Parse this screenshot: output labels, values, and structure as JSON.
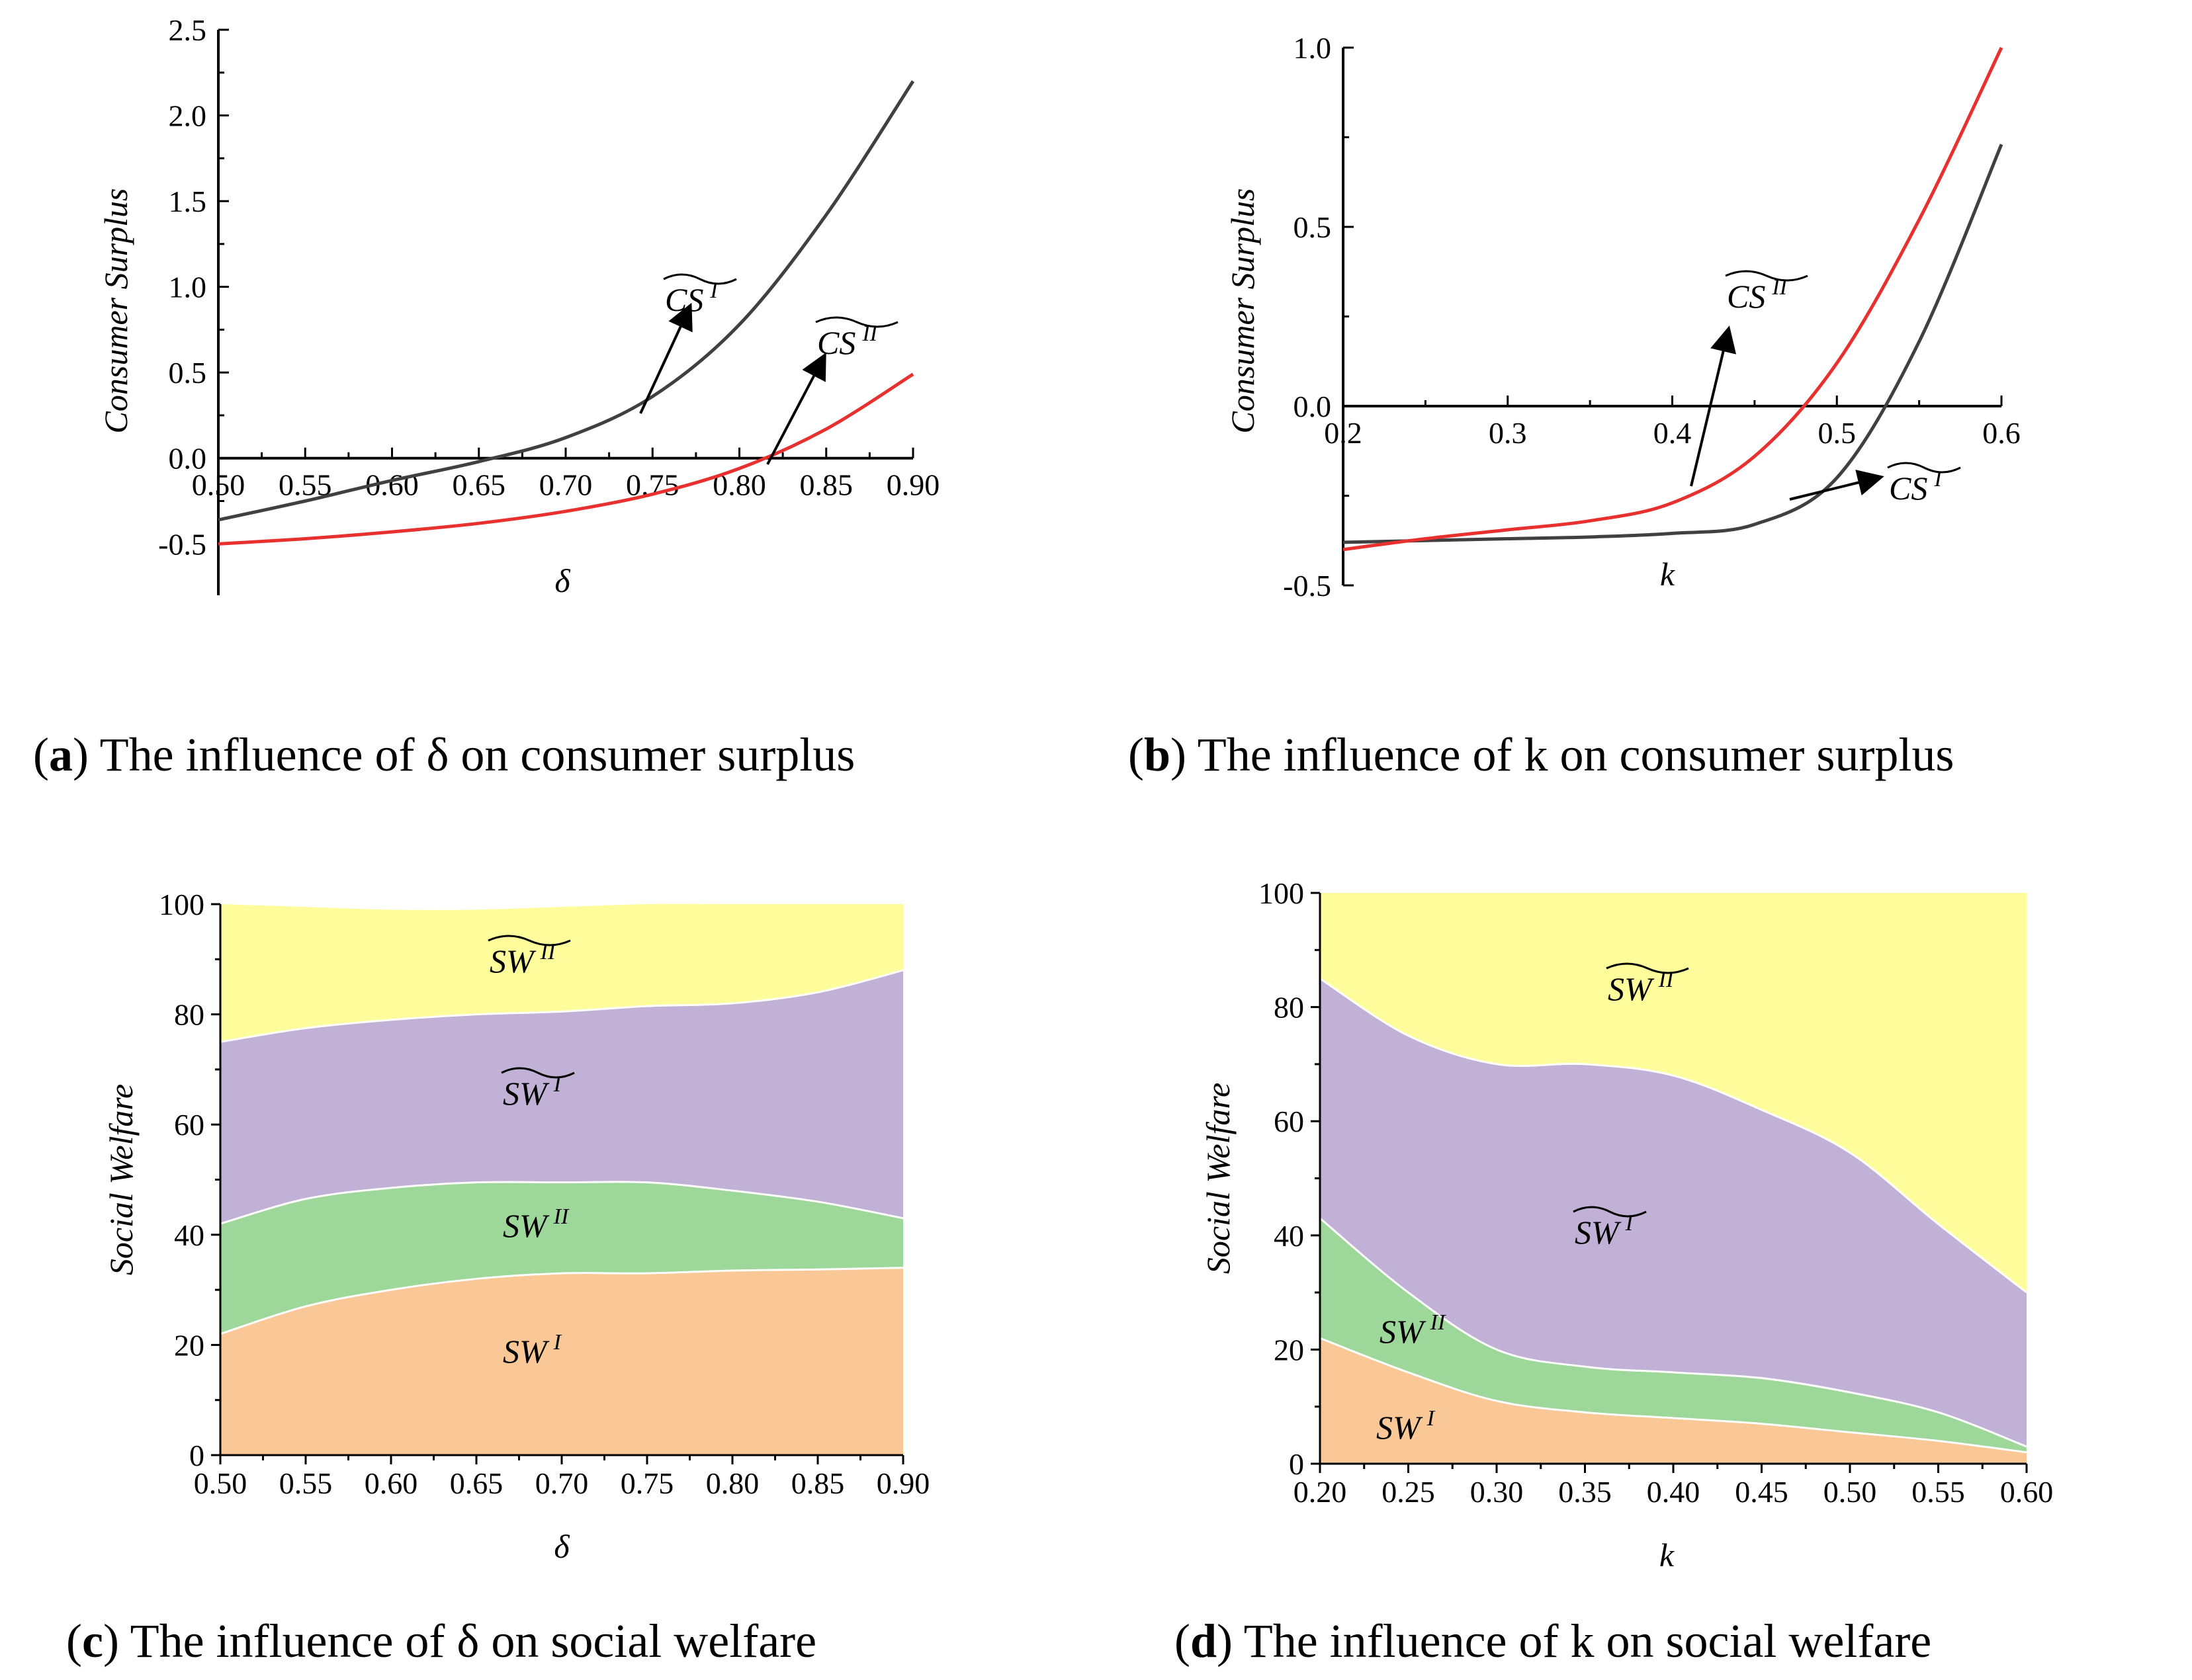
{
  "charts": [
    {
      "id": "a",
      "caption_letter": "a",
      "caption_text": " The influence of δ on consumer surplus",
      "xlabel": "δ",
      "ylabel": "Consumer Surplus",
      "colors": {
        "CS_I": "#404040",
        "CS_II": "#e8312f"
      }
    },
    {
      "id": "b",
      "caption_letter": "b",
      "caption_text": " The influence of k on consumer surplus",
      "xlabel": "k",
      "ylabel": "Consumer Surplus",
      "colors": {
        "CS_I": "#404040",
        "CS_II": "#e8312f"
      }
    },
    {
      "id": "c",
      "caption_letter": "c",
      "caption_text": " The influence of δ on social welfare",
      "xlabel": "δ",
      "ylabel": "Social Welfare",
      "colors": {
        "SW_I": "#f9c896",
        "SW_II": "#9ed79a",
        "SW_I_tilde": "#c1b1d6",
        "SW_II_tilde": "#fefc9b"
      }
    },
    {
      "id": "d",
      "caption_letter": "d",
      "caption_text": " The influence of k on social welfare",
      "xlabel": "k",
      "ylabel": "Social Welfare",
      "colors": {
        "SW_I": "#f9c896",
        "SW_II": "#9ed79a",
        "SW_I_tilde": "#c1b1d6",
        "SW_II_tilde": "#fefc9b"
      }
    }
  ],
  "chart_data": [
    {
      "id": "a",
      "type": "line",
      "title": "The influence of δ on consumer surplus",
      "xlabel": "δ",
      "ylabel": "Consumer Surplus",
      "xlim": [
        0.5,
        0.9
      ],
      "ylim": [
        -0.8,
        2.5
      ],
      "xticks": [
        "0.50",
        "0.55",
        "0.60",
        "0.65",
        "0.70",
        "0.75",
        "0.80",
        "0.85",
        "0.90"
      ],
      "yticks": [
        "2.5",
        "2.0",
        "1.5",
        "1.0",
        "0.5",
        "0.0",
        "-0.5"
      ],
      "x": [
        0.5,
        0.55,
        0.6,
        0.65,
        0.7,
        0.75,
        0.8,
        0.85,
        0.9
      ],
      "series": [
        {
          "name": "CS I (tilde)",
          "label_base": "CS",
          "label_sup": "I",
          "values": [
            -0.36,
            -0.25,
            -0.13,
            -0.02,
            0.12,
            0.36,
            0.78,
            1.42,
            2.2
          ]
        },
        {
          "name": "CS II (tilde)",
          "label_base": "CS",
          "label_sup": "II",
          "values": [
            -0.5,
            -0.47,
            -0.43,
            -0.38,
            -0.31,
            -0.21,
            -0.06,
            0.17,
            0.49
          ]
        }
      ]
    },
    {
      "id": "b",
      "type": "line",
      "title": "The influence of k on consumer surplus",
      "xlabel": "k",
      "ylabel": "Consumer Surplus",
      "xlim": [
        0.2,
        0.6
      ],
      "ylim": [
        -0.5,
        1.0
      ],
      "xticks": [
        "0.2",
        "0.3",
        "0.4",
        "0.5",
        "0.6"
      ],
      "yticks": [
        "1.0",
        "0.5",
        "0.0",
        "-0.5"
      ],
      "x": [
        0.2,
        0.25,
        0.3,
        0.35,
        0.4,
        0.45,
        0.5,
        0.55,
        0.6
      ],
      "series": [
        {
          "name": "CS I (tilde)",
          "label_base": "CS",
          "label_sup": "I",
          "values": [
            -0.38,
            -0.375,
            -0.37,
            -0.365,
            -0.355,
            -0.33,
            -0.2,
            0.18,
            0.73
          ]
        },
        {
          "name": "CS II (tilde)",
          "label_base": "CS",
          "label_sup": "II",
          "values": [
            -0.4,
            -0.37,
            -0.345,
            -0.32,
            -0.27,
            -0.14,
            0.12,
            0.52,
            1.0
          ]
        }
      ]
    },
    {
      "id": "c",
      "type": "area",
      "title": "The influence of δ on social welfare",
      "xlabel": "δ",
      "ylabel": "Social Welfare",
      "xlim": [
        0.5,
        0.9
      ],
      "ylim": [
        0,
        100
      ],
      "xticks": [
        "0.50",
        "0.55",
        "0.60",
        "0.65",
        "0.70",
        "0.75",
        "0.80",
        "0.85",
        "0.90"
      ],
      "yticks": [
        "100",
        "80",
        "60",
        "40",
        "20",
        "0"
      ],
      "x": [
        0.5,
        0.55,
        0.6,
        0.65,
        0.7,
        0.75,
        0.8,
        0.85,
        0.9
      ],
      "series": [
        {
          "name": "SW I",
          "label_base": "SW",
          "label_sup": "I",
          "tilde": false,
          "values": [
            22,
            27,
            30,
            32,
            33,
            33,
            33.5,
            33.7,
            34
          ]
        },
        {
          "name": "SW II",
          "label_base": "SW",
          "label_sup": "II",
          "tilde": false,
          "values": [
            20,
            19.5,
            18.5,
            17.5,
            16.5,
            16.5,
            14.5,
            12.3,
            9
          ]
        },
        {
          "name": "SW I (tilde)",
          "label_base": "SW",
          "label_sup": "I",
          "tilde": true,
          "values": [
            33,
            31,
            30.5,
            30.5,
            31,
            32,
            34,
            38,
            45
          ]
        },
        {
          "name": "SW II (tilde)",
          "label_base": "SW",
          "label_sup": "II",
          "tilde": true,
          "values": [
            25,
            22,
            20,
            19,
            19,
            18.5,
            18,
            16,
            12
          ]
        }
      ]
    },
    {
      "id": "d",
      "type": "area",
      "title": "The influence of k on social welfare",
      "xlabel": "k",
      "ylabel": "Social Welfare",
      "xlim": [
        0.2,
        0.6
      ],
      "ylim": [
        0,
        100
      ],
      "xticks": [
        "0.20",
        "0.25",
        "0.30",
        "0.35",
        "0.40",
        "0.45",
        "0.50",
        "0.55",
        "0.60"
      ],
      "yticks": [
        "100",
        "80",
        "60",
        "40",
        "20",
        "0"
      ],
      "x": [
        0.2,
        0.25,
        0.3,
        0.35,
        0.4,
        0.45,
        0.5,
        0.55,
        0.6
      ],
      "series": [
        {
          "name": "SW I",
          "label_base": "SW",
          "label_sup": "I",
          "tilde": false,
          "values": [
            22,
            16,
            11,
            9,
            8,
            7,
            5.5,
            4,
            2
          ]
        },
        {
          "name": "SW II",
          "label_base": "SW",
          "label_sup": "II",
          "tilde": false,
          "values": [
            21,
            14,
            9,
            8,
            8,
            8,
            7,
            5,
            1
          ]
        },
        {
          "name": "SW I (tilde)",
          "label_base": "SW",
          "label_sup": "I",
          "tilde": true,
          "values": [
            42,
            45,
            50,
            53,
            52,
            47,
            42,
            33,
            27
          ]
        },
        {
          "name": "SW II (tilde)",
          "label_base": "SW",
          "label_sup": "II",
          "tilde": true,
          "values": [
            15,
            25,
            30,
            30,
            32,
            38,
            45.5,
            58,
            70
          ]
        }
      ]
    }
  ]
}
